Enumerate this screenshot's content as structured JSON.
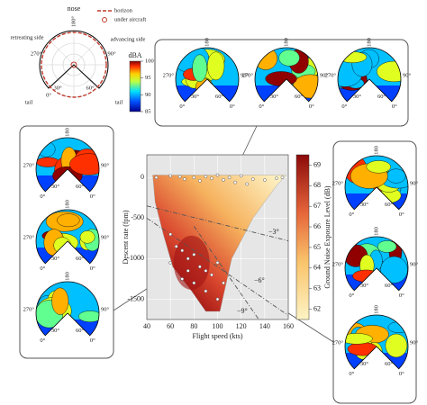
{
  "legend_diagram": {
    "nose": "nose",
    "top_angle": "180°",
    "retreating": "retreating side",
    "advancing": "advancing side",
    "tail_left": "tail",
    "tail_right": "tail",
    "horizon": "horizon",
    "under_aircraft": "under aircraft",
    "colorbar_title": "dBA",
    "colorbar_lim": [
      85,
      100
    ],
    "colorbar_ticks": [
      100,
      95,
      90,
      85
    ]
  },
  "inset_labels": {
    "top": "180",
    "left": "270°",
    "right": "90°",
    "zero": "0°",
    "thirty": "30°",
    "sixty": "60°"
  },
  "chart_data": {
    "type": "scatter",
    "xlabel": "Flight speed (kts)",
    "ylabel": "Descent rate (fpm)",
    "x": [
      48,
      60,
      68,
      72,
      80,
      85,
      90,
      95,
      100,
      105,
      110,
      115,
      120,
      125,
      130,
      140,
      150,
      155,
      60,
      65,
      70,
      75,
      80,
      85,
      90,
      95,
      100,
      70,
      80,
      90,
      100,
      105,
      60,
      75
    ],
    "values": [
      0,
      20,
      10,
      -20,
      0,
      -40,
      10,
      -10,
      30,
      -30,
      0,
      -60,
      20,
      -80,
      -20,
      -30,
      -10,
      0,
      -700,
      -850,
      -900,
      -1000,
      -950,
      -1100,
      -1150,
      -1200,
      -1050,
      -1250,
      -1300,
      -1400,
      -1500,
      -1300,
      -1050,
      -1150
    ],
    "point_color": "#ffffff",
    "xlim": [
      40,
      160
    ],
    "xticks": [
      40,
      60,
      80,
      100,
      120,
      140,
      160
    ],
    "ylim": [
      -1750,
      280
    ],
    "yticks": [
      0,
      -500,
      -1000,
      -1500
    ],
    "grid": true,
    "colorbar": {
      "label": "Ground Noise Exposure Level (dB)",
      "lim": [
        61.5,
        69.5
      ],
      "ticks": [
        62,
        63,
        64,
        65,
        66,
        67,
        68,
        69
      ]
    },
    "annotations": [
      "−3°",
      "−6°",
      "−9°"
    ]
  }
}
